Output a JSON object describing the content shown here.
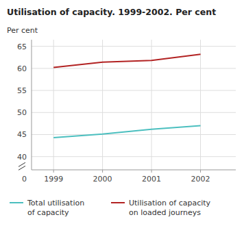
{
  "chart_data": {
    "type": "line",
    "title": "Utilisation of capacity. 1999-2002. Per cent",
    "y_label": "Per cent",
    "x": [
      1999,
      2000,
      2001,
      2002
    ],
    "xlim": [
      1998.55,
      2002.72
    ],
    "xticks": [
      1999,
      2000,
      2001,
      2002
    ],
    "ylim": [
      37.0,
      66.5
    ],
    "yticks": [
      40,
      45,
      50,
      55,
      60,
      65
    ],
    "series": [
      {
        "name": "Total utilisation\nof capacity",
        "color": "#4bbfbf",
        "values": [
          44.3,
          45.1,
          46.2,
          47.0
        ]
      },
      {
        "name": "Utilisation of capacity\non loaded journeys",
        "color": "#b22222",
        "values": [
          60.2,
          61.4,
          61.8,
          63.2
        ]
      }
    ],
    "annotations": [
      "0"
    ],
    "grid": true,
    "legend": "bottom"
  }
}
